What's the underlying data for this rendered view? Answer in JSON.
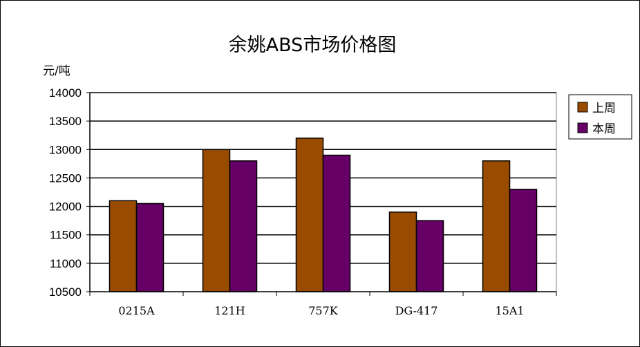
{
  "chart_data": {
    "type": "bar",
    "title": "余姚ABS市场价格图",
    "ylabel": "元/吨",
    "xlabel": "",
    "categories": [
      "0215A",
      "121H",
      "757K",
      "DG-417",
      "15A1"
    ],
    "series": [
      {
        "name": "上周",
        "values": [
          12100,
          13000,
          13200,
          11900,
          12800
        ],
        "color": "#994C00"
      },
      {
        "name": "本周",
        "values": [
          12050,
          12800,
          12900,
          11750,
          12300
        ],
        "color": "#660066"
      }
    ],
    "ylim": [
      10500,
      14000
    ],
    "yticks": [
      10500,
      11000,
      11500,
      12000,
      12500,
      13000,
      13500,
      14000
    ],
    "grid": true,
    "legend_position": "right"
  }
}
